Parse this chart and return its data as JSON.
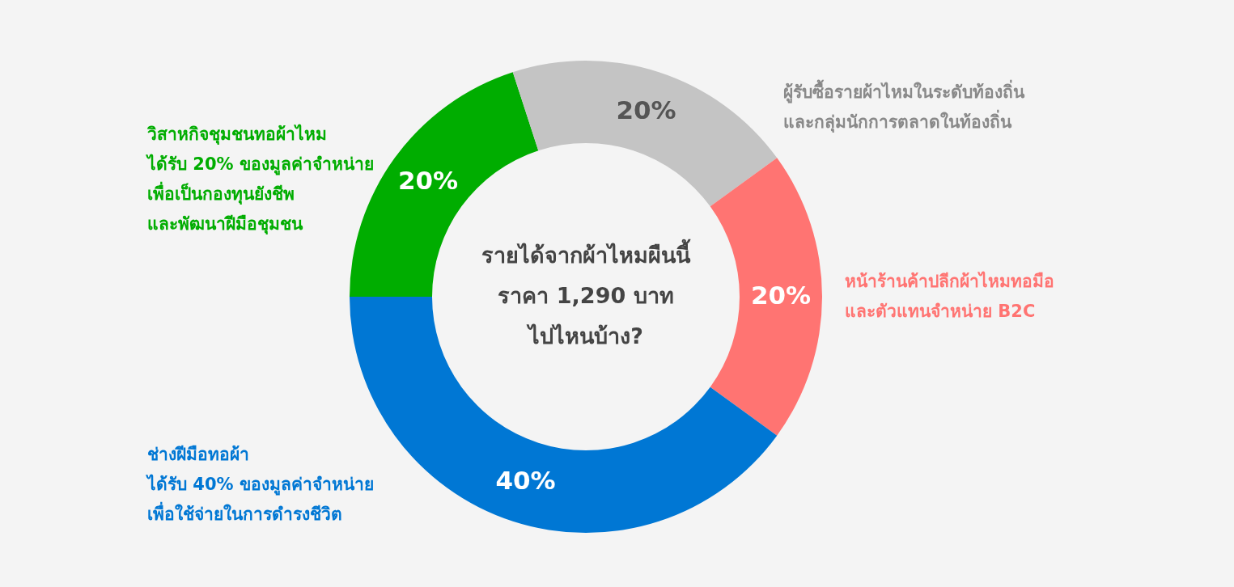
{
  "chart_data": {
    "type": "donut",
    "title": "รายได้จากผ้าไหมผืนนี้\nราคา 1,290 บาท\nไปไหนบ้าง?",
    "categories": [
      "วิสาหกิจชุมชนทอผ้าไหม\nได้รับ 20% ของมูลค่าจำหน่าย\nเพื่อเป็นกองทุนยังชีพ\nและพัฒนาฝีมือชุมชน",
      "ผู้รับซื้อรายผ้าไหมในระดับท้องถิ่น\nและกลุ่มนักการตลาดในท้องถิ่น",
      "หน้าร้านค้าปลีกผ้าไหมทอมือ\nและตัวแทนจำหน่าย B2C",
      "ช่างฝีมือทอผ้า\nได้รับ 40% ของมูลค่าจำหน่าย\nเพื่อใช้จ่ายในการดำรงชีวิต"
    ],
    "values": [
      20,
      20,
      20,
      40
    ],
    "colors": [
      "#00ad00",
      "#c4c4c4",
      "#ff7472",
      "#0077d4"
    ],
    "value_labels": [
      "20%",
      "20%",
      "20%",
      "40%"
    ]
  }
}
